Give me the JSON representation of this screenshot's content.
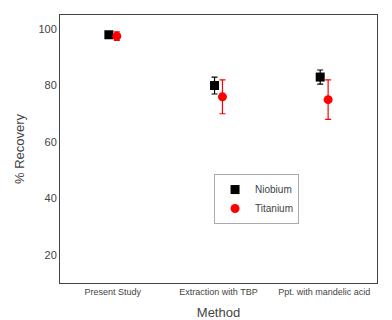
{
  "chart_data": {
    "type": "scatter",
    "xlabel": "Method",
    "ylabel": "% Recovery",
    "categories": [
      "Present Study",
      "Extraction with TBP",
      "Ppt. with mandelic acid"
    ],
    "series": [
      {
        "name": "Niobium",
        "color": "black",
        "marker": "square",
        "values": [
          98,
          80,
          83
        ],
        "yerr": [
          0.8,
          3.0,
          2.5
        ]
      },
      {
        "name": "Titanium",
        "color": "red",
        "marker": "circle",
        "values": [
          97.5,
          76,
          75
        ],
        "yerr": [
          1.5,
          6.0,
          7.0
        ]
      }
    ],
    "ylim": [
      10,
      105
    ],
    "yticks": [
      20,
      40,
      60,
      80,
      100
    ],
    "grid": false,
    "legend": "lower center"
  }
}
